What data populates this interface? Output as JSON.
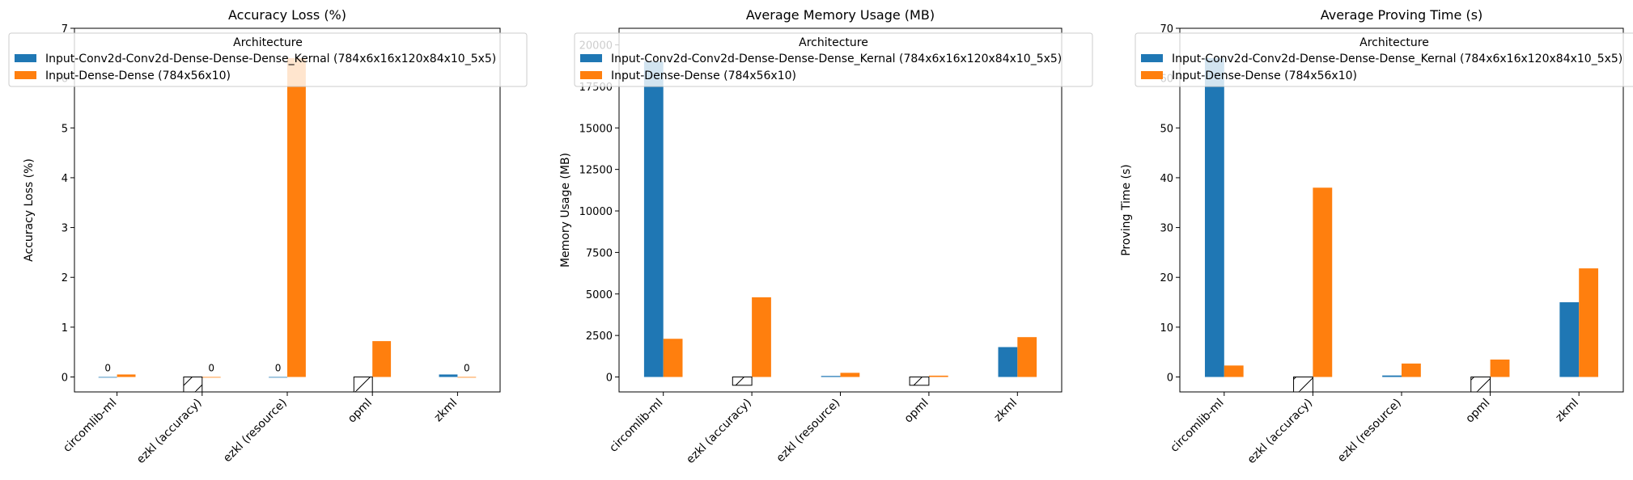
{
  "colors": {
    "series_0": "#1f77b4",
    "series_1": "#ff7f0e",
    "missing_marker": "hatched-outline-bar"
  },
  "chart_data": [
    {
      "type": "bar",
      "title": "Accuracy Loss (%)",
      "xlabel": "",
      "ylabel": "Accuracy Loss (%)",
      "categories": [
        "circomlib-ml",
        "ezkl (accuracy)",
        "ezkl (resource)",
        "opml",
        "zkml"
      ],
      "ylim": [
        -0.3,
        7.0
      ],
      "yticks": [
        0,
        1,
        2,
        3,
        4,
        5,
        6,
        7
      ],
      "legend": {
        "title": "Architecture",
        "placement": "top-left"
      },
      "grid": false,
      "series": [
        {
          "name": "Input-Conv2d-Conv2d-Dense-Dense-Dense_Kernal (784x6x16x120x84x10_5x5)",
          "values": [
            0.0,
            null,
            0.0,
            null,
            0.05
          ]
        },
        {
          "name": "Input-Dense-Dense (784x56x10)",
          "values": [
            0.05,
            0.0,
            6.4,
            0.72,
            0.0
          ]
        }
      ],
      "annotations": [
        {
          "category": "circomlib-ml",
          "series": 0,
          "text": "0"
        },
        {
          "category": "ezkl (accuracy)",
          "series": 1,
          "text": "0"
        },
        {
          "category": "ezkl (resource)",
          "series": 0,
          "text": "0"
        },
        {
          "category": "zkml",
          "series": 1,
          "text": "0"
        }
      ],
      "missing_markers": [
        {
          "category": "ezkl (accuracy)",
          "series": 0,
          "depth": -0.3
        },
        {
          "category": "opml",
          "series": 0,
          "depth": -0.3
        }
      ]
    },
    {
      "type": "bar",
      "title": "Average Memory Usage (MB)",
      "xlabel": "",
      "ylabel": "Memory Usage (MB)",
      "categories": [
        "circomlib-ml",
        "ezkl (accuracy)",
        "ezkl (resource)",
        "opml",
        "zkml"
      ],
      "ylim": [
        -900,
        21000
      ],
      "yticks": [
        0,
        2500,
        5000,
        7500,
        10000,
        12500,
        15000,
        17500,
        20000
      ],
      "legend": {
        "title": "Architecture",
        "placement": "top-left"
      },
      "grid": false,
      "series": [
        {
          "name": "Input-Conv2d-Conv2d-Dense-Dense-Dense_Kernal (784x6x16x120x84x10_5x5)",
          "values": [
            19000,
            null,
            60,
            null,
            1800
          ]
        },
        {
          "name": "Input-Dense-Dense (784x56x10)",
          "values": [
            2300,
            4800,
            250,
            80,
            2400
          ]
        }
      ],
      "annotations": [],
      "missing_markers": [
        {
          "category": "ezkl (accuracy)",
          "series": 0,
          "depth": -500
        },
        {
          "category": "opml",
          "series": 0,
          "depth": -500
        }
      ]
    },
    {
      "type": "bar",
      "title": "Average Proving Time (s)",
      "xlabel": "",
      "ylabel": "Proving Time (s)",
      "categories": [
        "circomlib-ml",
        "ezkl (accuracy)",
        "ezkl (resource)",
        "opml",
        "zkml"
      ],
      "ylim": [
        -3,
        70
      ],
      "yticks": [
        0,
        10,
        20,
        30,
        40,
        50,
        60,
        70
      ],
      "legend": {
        "title": "Architecture",
        "placement": "top-left"
      },
      "grid": false,
      "series": [
        {
          "name": "Input-Conv2d-Conv2d-Dense-Dense-Dense_Kernal (784x6x16x120x84x10_5x5)",
          "values": [
            64,
            null,
            0.3,
            null,
            15
          ]
        },
        {
          "name": "Input-Dense-Dense (784x56x10)",
          "values": [
            2.3,
            38,
            2.7,
            3.5,
            21.8
          ]
        }
      ],
      "annotations": [],
      "missing_markers": [
        {
          "category": "ezkl (accuracy)",
          "series": 0,
          "depth": -3
        },
        {
          "category": "opml",
          "series": 0,
          "depth": -3
        }
      ]
    }
  ]
}
